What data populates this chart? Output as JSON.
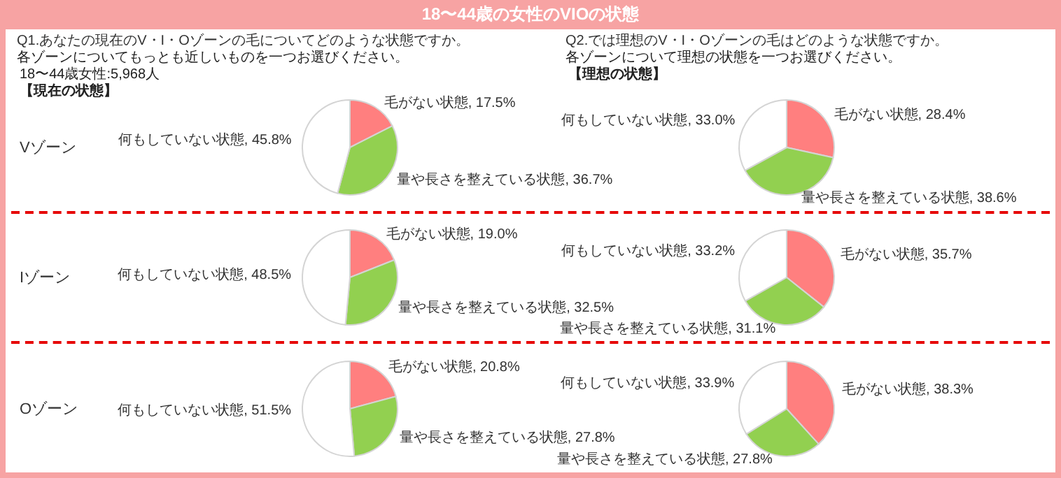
{
  "chart_data": [
    {
      "type": "pie",
      "title": "18〜44歳の女性のVIOの状態",
      "subtitle": "Q1.あなたの現在のV・I・Oゾーンの毛についてどのような状態ですか。",
      "annotations": [
        "各ゾーンについてもっとも近しいものを一つお選びください。",
        "18〜44歳女性:5,968人",
        "【現在の状態】"
      ],
      "ylabel": "Vゾーン",
      "categories": [
        "毛がない状態",
        "量や長さを整えている状態",
        "何もしていない状態"
      ],
      "values": [
        17.5,
        36.7,
        45.8
      ],
      "value_labels": [
        "17.5%",
        "36.7%",
        "45.8%"
      ],
      "colors": [
        "#ff7f7f",
        "#92d050",
        "#ffffff"
      ]
    },
    {
      "type": "pie",
      "subtitle": "Q2.では理想のV・I・Oゾーンの毛はどのような状態ですか。",
      "annotations": [
        "各ゾーンについて理想の状態を一つお選びください。",
        "【理想の状態】"
      ],
      "categories": [
        "毛がない状態",
        "量や長さを整えている状態",
        "何もしていない状態"
      ],
      "values": [
        28.4,
        38.6,
        33.0
      ],
      "value_labels": [
        "28.4%",
        "38.6%",
        "33.0%"
      ],
      "colors": [
        "#ff7f7f",
        "#92d050",
        "#ffffff"
      ]
    },
    {
      "type": "pie",
      "ylabel": "Iゾーン",
      "categories": [
        "毛がない状態",
        "量や長さを整えている状態",
        "何もしていない状態"
      ],
      "values": [
        19.0,
        32.5,
        48.5
      ],
      "value_labels": [
        "19.0%",
        "32.5%",
        "48.5%"
      ],
      "colors": [
        "#ff7f7f",
        "#92d050",
        "#ffffff"
      ]
    },
    {
      "type": "pie",
      "categories": [
        "毛がない状態",
        "量や長さを整えている状態",
        "何もしていない状態"
      ],
      "values": [
        35.7,
        31.1,
        33.2
      ],
      "value_labels": [
        "35.7%",
        "31.1%",
        "33.2%"
      ],
      "colors": [
        "#ff7f7f",
        "#92d050",
        "#ffffff"
      ]
    },
    {
      "type": "pie",
      "ylabel": "Oゾーン",
      "categories": [
        "毛がない状態",
        "量や長さを整えている状態",
        "何もしていない状態"
      ],
      "values": [
        20.8,
        27.8,
        51.5
      ],
      "value_labels": [
        "20.8%",
        "27.8%",
        "51.5%"
      ],
      "colors": [
        "#ff7f7f",
        "#92d050",
        "#ffffff"
      ]
    },
    {
      "type": "pie",
      "categories": [
        "毛がない状態",
        "量や長さを整えている状態",
        "何もしていない状態"
      ],
      "values": [
        38.3,
        27.8,
        33.9
      ],
      "value_labels": [
        "38.3%",
        "27.8%",
        "33.9%"
      ],
      "colors": [
        "#ff7f7f",
        "#92d050",
        "#ffffff"
      ]
    }
  ]
}
